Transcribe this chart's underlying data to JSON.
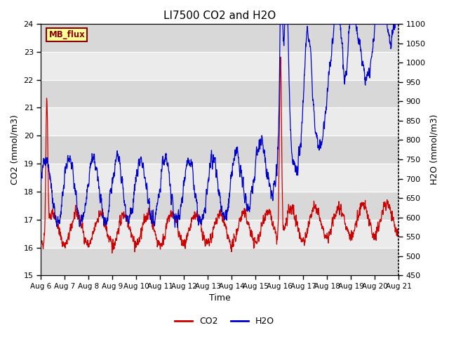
{
  "title": "LI7500 CO2 and H2O",
  "xlabel": "Time",
  "ylabel_left": "CO2 (mmol/m3)",
  "ylabel_right": "H2O (mmol/m3)",
  "ylim_left": [
    15.0,
    24.0
  ],
  "ylim_right": [
    450,
    1100
  ],
  "yticks_left": [
    15.0,
    16.0,
    17.0,
    18.0,
    19.0,
    20.0,
    21.0,
    22.0,
    23.0,
    24.0
  ],
  "yticks_right": [
    450,
    500,
    550,
    600,
    650,
    700,
    750,
    800,
    850,
    900,
    950,
    1000,
    1050,
    1100
  ],
  "xtick_labels": [
    "Aug 6",
    "Aug 7",
    "Aug 8",
    "Aug 9",
    "Aug 10",
    "Aug 11",
    "Aug 12",
    "Aug 13",
    "Aug 14",
    "Aug 15",
    "Aug 16",
    "Aug 17",
    "Aug 18",
    "Aug 19",
    "Aug 20",
    "Aug 21"
  ],
  "watermark_text": "MB_flux",
  "watermark_bg": "#FFFF99",
  "watermark_fg": "#8B0000",
  "fig_bg": "#FFFFFF",
  "plot_bg_light": "#EBEBEB",
  "plot_bg_dark": "#D8D8D8",
  "co2_color": "#CC0000",
  "h2o_color": "#0000CC",
  "linewidth": 0.9,
  "legend_co2": "CO2",
  "legend_h2o": "H2O",
  "n_days": 15,
  "ppd": 144,
  "seed": 42
}
